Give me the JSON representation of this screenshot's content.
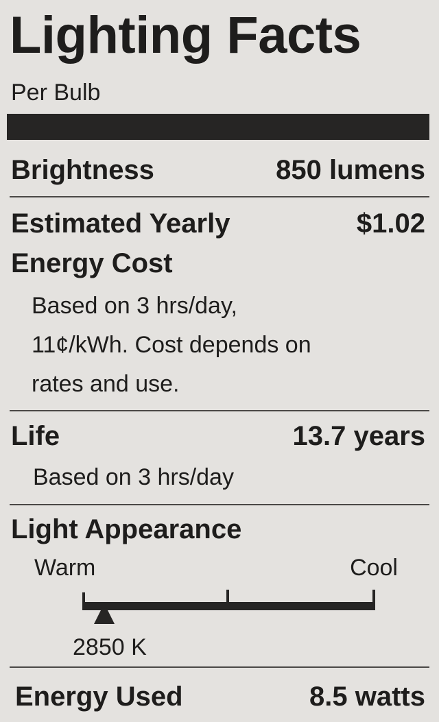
{
  "title": "Lighting Facts",
  "subtitle": "Per Bulb",
  "brightness": {
    "label": "Brightness",
    "value": "850 lumens"
  },
  "cost": {
    "label_line1": "Estimated Yearly",
    "label_line2": "Energy Cost",
    "value": "$1.02",
    "note_lines": [
      "Based on 3 hrs/day,",
      "11¢/kWh. Cost depends on",
      "rates and use."
    ]
  },
  "life": {
    "label": "Life",
    "value": "13.7 years",
    "note": "Based on 3 hrs/day"
  },
  "appearance": {
    "label": "Light Appearance",
    "warm": "Warm",
    "cool": "Cool",
    "value": "2850 K",
    "kelvin": 2850
  },
  "energy": {
    "label": "Energy Used",
    "value": "8.5 watts"
  },
  "colors": {
    "background": "#e4e2df",
    "ink": "#1e1d1c"
  }
}
